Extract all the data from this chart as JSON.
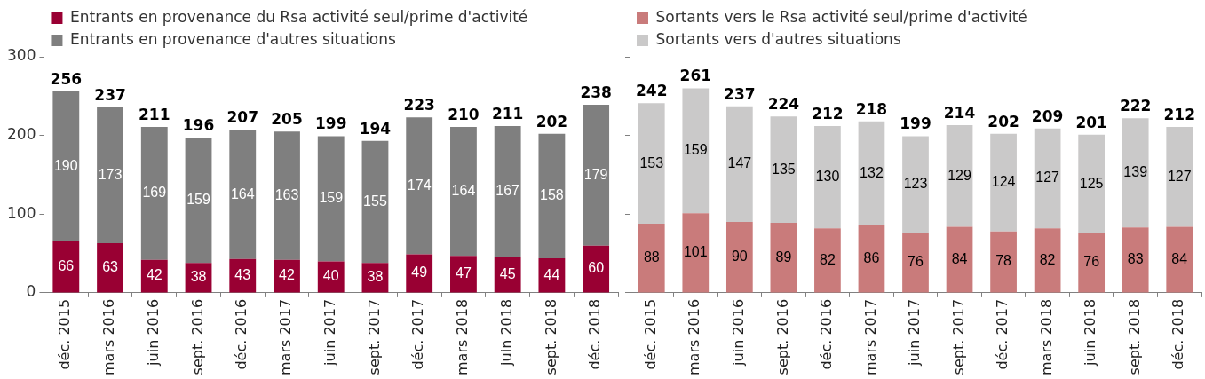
{
  "chart_data": [
    {
      "type": "bar",
      "stacked": true,
      "categories": [
        "déc. 2015",
        "mars 2016",
        "juin 2016",
        "sept. 2016",
        "déc. 2016",
        "mars 2017",
        "juin 2017",
        "sept. 2017",
        "déc. 2017",
        "mars 2018",
        "juin 2018",
        "sept. 2018",
        "déc. 2018"
      ],
      "series": [
        {
          "name": "Entrants en provenance du Rsa activité seul/prime d'activité",
          "color": "#990033",
          "values": [
            66,
            63,
            42,
            38,
            43,
            42,
            40,
            38,
            49,
            47,
            45,
            44,
            60
          ]
        },
        {
          "name": "Entrants en provenance d'autres situations",
          "color": "#7f7f7f",
          "values": [
            190,
            173,
            169,
            159,
            164,
            163,
            159,
            155,
            174,
            164,
            167,
            158,
            179
          ]
        }
      ],
      "ylim": [
        0,
        300
      ],
      "yticks": [
        0,
        100,
        200,
        300
      ],
      "data_labels": true,
      "totals": [
        "256",
        "237",
        "211",
        "196",
        "207",
        "205",
        "199",
        "194",
        "223",
        "210",
        "211",
        "202",
        "238"
      ],
      "legend": "top left"
    },
    {
      "type": "bar",
      "stacked": true,
      "categories": [
        "déc. 2015",
        "mars 2016",
        "juin 2016",
        "sept. 2016",
        "déc. 2016",
        "mars 2017",
        "juin 2017",
        "sept. 2017",
        "déc. 2017",
        "mars 2018",
        "juin 2018",
        "sept. 2018",
        "déc. 2018"
      ],
      "series": [
        {
          "name": "Sortants vers le Rsa activité seul/prime d'activité",
          "color": "#c97b7b",
          "values": [
            88,
            101,
            90,
            89,
            82,
            86,
            76,
            84,
            78,
            82,
            76,
            83,
            84
          ]
        },
        {
          "name": "Sortants vers d'autres situations",
          "color": "#cac9c9",
          "values": [
            153,
            159,
            147,
            135,
            130,
            132,
            123,
            129,
            124,
            127,
            125,
            139,
            127
          ]
        }
      ],
      "ylim": [
        0,
        300
      ],
      "yticks": [
        0,
        100,
        200,
        300
      ],
      "tick_labels": "x",
      "data_labels": true,
      "totals": [
        "242",
        "261",
        "237",
        "224",
        "212",
        "218",
        "199",
        "214",
        "202",
        "209",
        "201",
        "222",
        "212"
      ],
      "legend": "top left"
    }
  ]
}
